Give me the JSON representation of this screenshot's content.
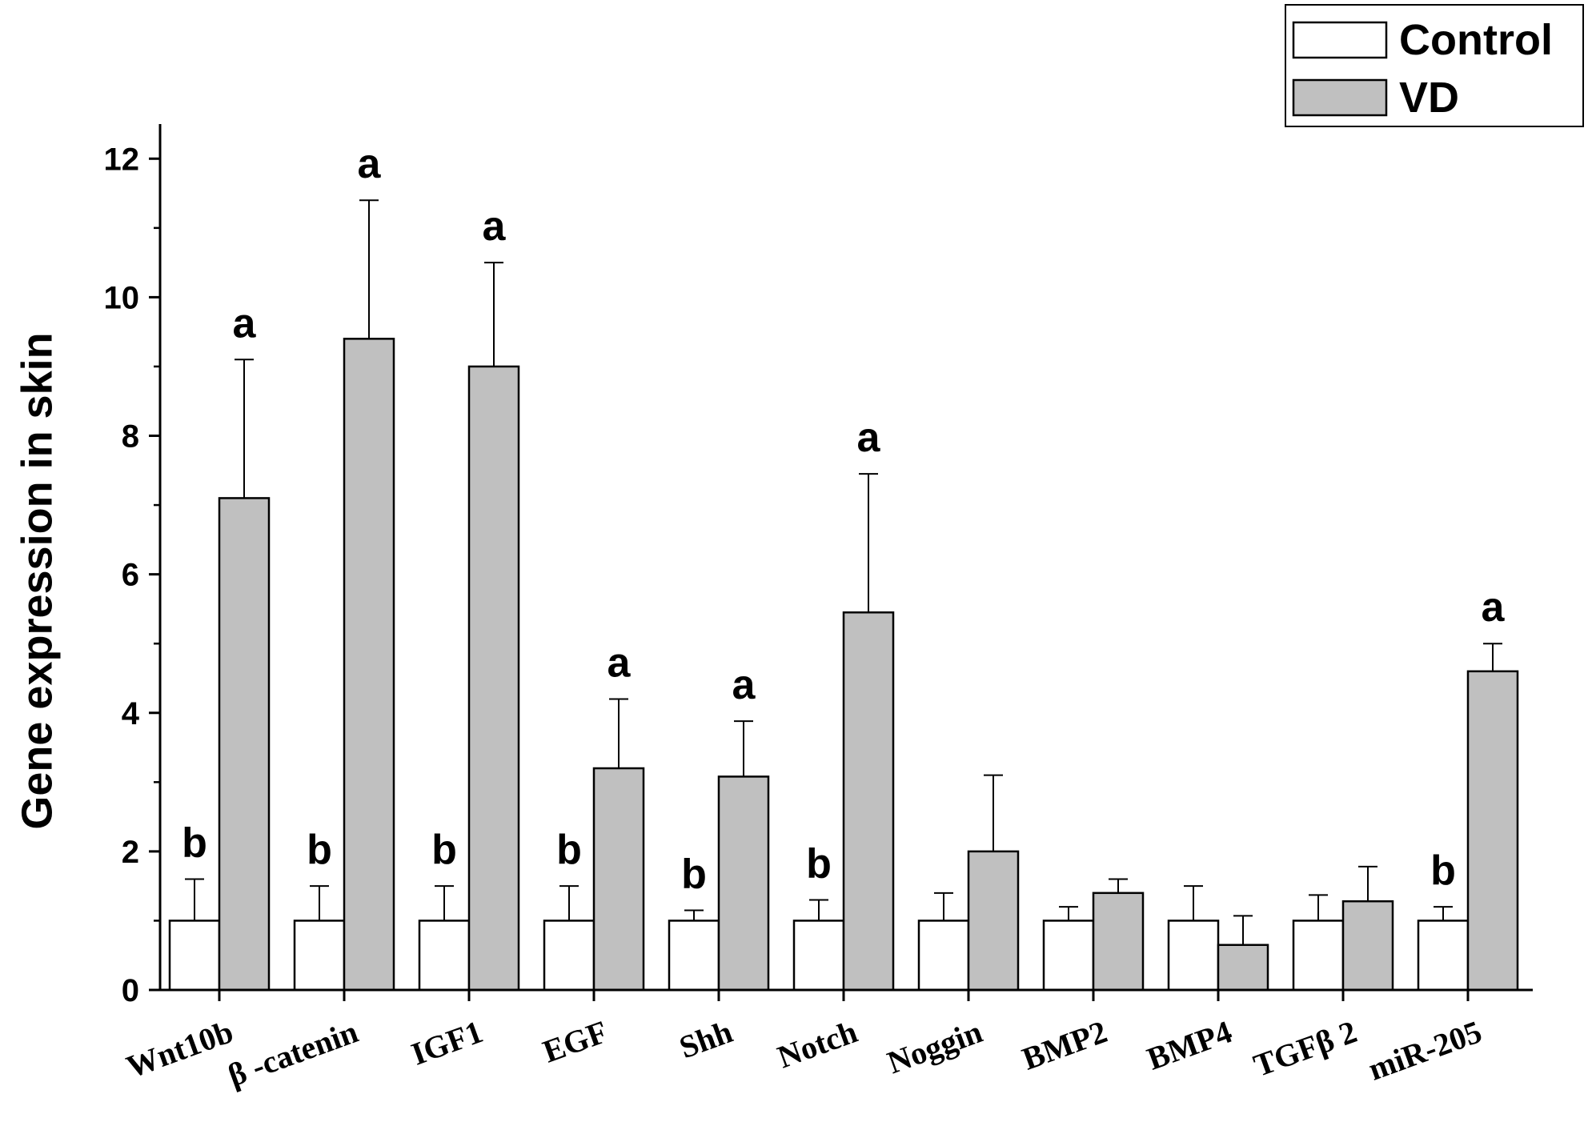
{
  "chart_data": {
    "type": "bar",
    "ylabel": "Gene expression in skin",
    "xlabel": "",
    "ylim": [
      0,
      12.5
    ],
    "yticks": [
      0,
      2,
      4,
      6,
      8,
      10,
      12
    ],
    "grid": false,
    "legend_position": "top-right",
    "categories": [
      "Wnt10b",
      "β -catenin",
      "IGF1",
      "EGF",
      "Shh",
      "Notch",
      "Noggin",
      "BMP2",
      "BMP4",
      "TGFβ 2",
      "miR-205"
    ],
    "series": [
      {
        "name": "Control",
        "color": "#ffffff",
        "values": [
          1.0,
          1.0,
          1.0,
          1.0,
          1.0,
          1.0,
          1.0,
          1.0,
          1.0,
          1.0,
          1.0
        ],
        "error": [
          0.6,
          0.5,
          0.5,
          0.5,
          0.15,
          0.3,
          0.4,
          0.2,
          0.5,
          0.37,
          0.2
        ],
        "sig_labels": [
          "b",
          "b",
          "b",
          "b",
          "b",
          "b",
          "",
          "",
          "",
          "",
          "b"
        ]
      },
      {
        "name": "VD",
        "color": "#c0c0c0",
        "values": [
          7.1,
          9.4,
          9.0,
          3.2,
          3.08,
          5.45,
          2.0,
          1.4,
          0.65,
          1.28,
          4.6
        ],
        "error": [
          2.0,
          2.0,
          1.5,
          1.0,
          0.8,
          2.0,
          1.1,
          0.2,
          0.42,
          0.5,
          0.4
        ],
        "sig_labels": [
          "a",
          "a",
          "a",
          "a",
          "a",
          "a",
          "",
          "",
          "",
          "",
          "a"
        ]
      }
    ]
  }
}
